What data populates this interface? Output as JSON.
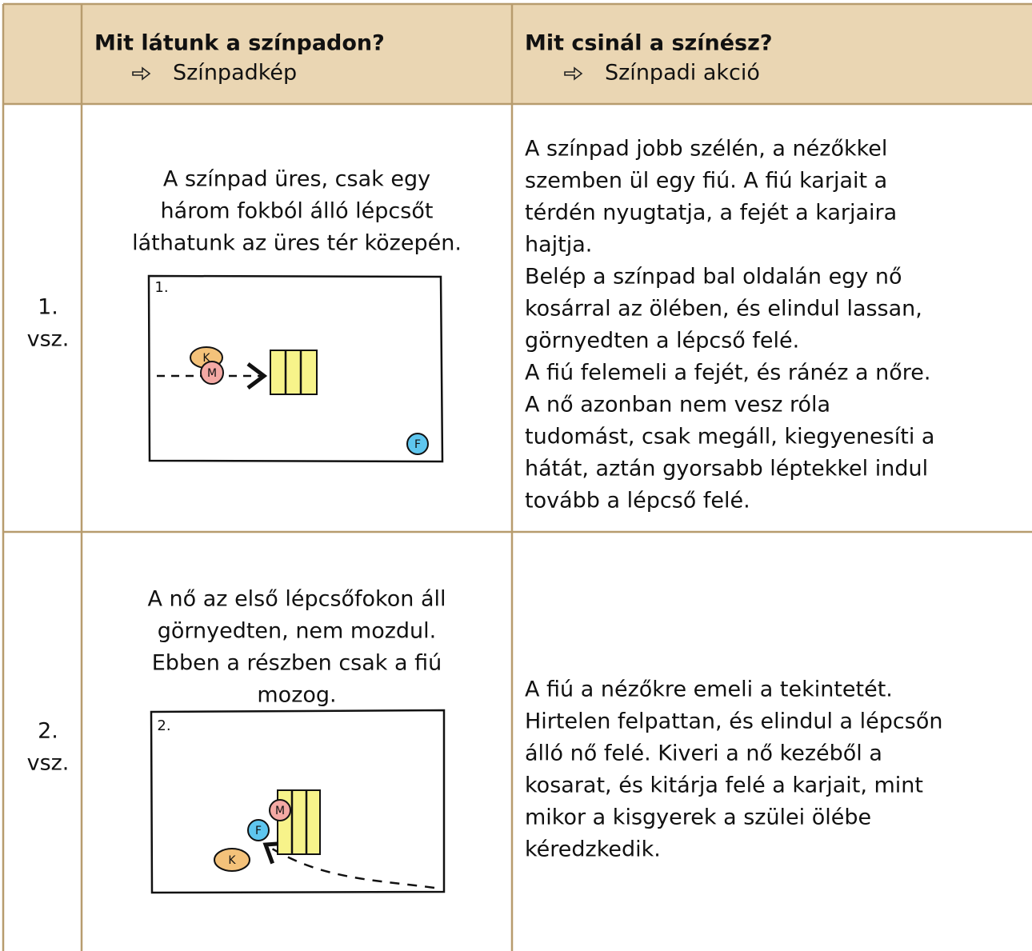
{
  "header": {
    "columns": [
      {
        "title": "Mit látunk a színpadon?",
        "subtitle": "Színpadkép"
      },
      {
        "title": "Mit csinál a színész?",
        "subtitle": "Színpadi akció"
      }
    ]
  },
  "rows": [
    {
      "label": [
        "1.",
        "vsz."
      ],
      "scene": [
        "A színpad üres, csak egy",
        "három fokból álló lépcsőt",
        "láthatunk az üres tér közepén."
      ],
      "sketch": {
        "number": "1.",
        "labels": [
          "K",
          "M",
          "F"
        ]
      },
      "action": [
        "A színpad jobb szélén, a nézőkkel",
        "szemben ül egy fiú. A fiú karjait a",
        "térdén nyugtatja, a fejét a karjaira",
        "hajtja.",
        "Belép a színpad bal oldalán egy nő",
        "kosárral az ölében, és elindul lassan,",
        "görnyedten a lépcső felé.",
        "A fiú felemeli a fejét, és ránéz a nőre.",
        "A nő azonban nem vesz róla",
        "tudomást, csak megáll, kiegyenesíti a",
        "hátát, aztán gyorsabb léptekkel indul",
        "tovább a lépcső felé."
      ]
    },
    {
      "label": [
        "2.",
        "vsz."
      ],
      "scene": [
        "A nő az első lépcsőfokon áll",
        "görnyedten, nem mozdul.",
        "Ebben a részben csak a fiú",
        "mozog."
      ],
      "sketch": {
        "number": "2.",
        "labels": [
          "M",
          "F",
          "K"
        ]
      },
      "action": [
        "A fiú a nézőkre emeli a tekintetét.",
        "Hirtelen felpattan, és elindul a lépcsőn",
        "álló nő felé. Kiveri a nő kezéből a",
        "kosarat, és kitárja felé a karjait, mint",
        "mikor a kisgyerek a szülei ölébe",
        "kéredzkedik."
      ]
    }
  ]
}
